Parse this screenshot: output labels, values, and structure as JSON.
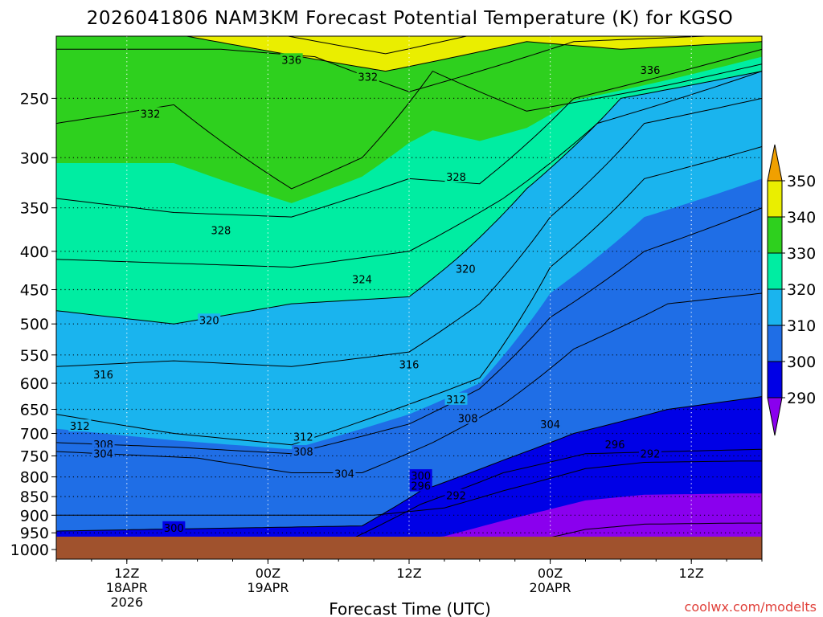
{
  "chart_data": {
    "type": "heatmap",
    "title": "2026041806 NAM3KM Forecast Potential Temperature (K) for KGSO",
    "xlabel": "Forecast Time (UTC)",
    "ylabel": "",
    "credit": "coolwx.com/modelts",
    "y_axis": {
      "scale": "log-pressure",
      "range_hPa": [
        1000,
        200
      ],
      "ticks": [
        250,
        300,
        350,
        400,
        450,
        500,
        550,
        600,
        650,
        700,
        750,
        800,
        850,
        900,
        950,
        1000
      ]
    },
    "x_axis": {
      "range_hours": [
        0,
        60
      ],
      "ticks": [
        {
          "hour": 6,
          "lines": [
            "12Z",
            "18APR",
            "2026"
          ]
        },
        {
          "hour": 18,
          "lines": [
            "00Z",
            "19APR"
          ]
        },
        {
          "hour": 30,
          "lines": [
            "12Z"
          ]
        },
        {
          "hour": 42,
          "lines": [
            "00Z",
            "20APR"
          ]
        },
        {
          "hour": 54,
          "lines": [
            "12Z"
          ]
        }
      ]
    },
    "grid": true,
    "colorbar": {
      "labels": [
        "290",
        "300",
        "310",
        "320",
        "330",
        "340",
        "350"
      ],
      "bins": [
        {
          "lo": 280,
          "hi": 290,
          "color": "#8a00ee"
        },
        {
          "lo": 290,
          "hi": 300,
          "color": "#0000e6"
        },
        {
          "lo": 300,
          "hi": 310,
          "color": "#1f6ee6"
        },
        {
          "lo": 310,
          "hi": 320,
          "color": "#1ab4ee"
        },
        {
          "lo": 320,
          "hi": 330,
          "color": "#00eda2"
        },
        {
          "lo": 330,
          "hi": 340,
          "color": "#2ed01e"
        },
        {
          "lo": 340,
          "hi": 350,
          "color": "#eaee00"
        },
        {
          "lo": 350,
          "hi": 360,
          "color": "#f0a000"
        }
      ]
    },
    "contour_interval_K": 4,
    "ground_color": "#a0522d",
    "isotherm_samples": [
      {
        "theta": 292,
        "points": [
          [
            27,
            900
          ],
          [
            33,
            880
          ],
          [
            38,
            835
          ],
          [
            45,
            780
          ],
          [
            50,
            765
          ],
          [
            58,
            762
          ]
        ]
      },
      {
        "theta": 296,
        "points": [
          [
            25,
            970
          ],
          [
            31,
            870
          ],
          [
            38,
            790
          ],
          [
            45,
            745
          ],
          [
            52,
            740
          ],
          [
            60,
            735
          ]
        ]
      },
      {
        "theta": 300,
        "points": [
          [
            0,
            945
          ],
          [
            8,
            940
          ],
          [
            26,
            930
          ],
          [
            31,
            835
          ],
          [
            38,
            760
          ],
          [
            44,
            700
          ],
          [
            52,
            650
          ],
          [
            60,
            625
          ]
        ]
      },
      {
        "theta": 304,
        "points": [
          [
            0,
            740
          ],
          [
            12,
            755
          ],
          [
            20,
            790
          ],
          [
            26,
            790
          ],
          [
            32,
            720
          ],
          [
            38,
            640
          ],
          [
            44,
            540
          ],
          [
            52,
            470
          ],
          [
            60,
            455
          ]
        ]
      },
      {
        "theta": 308,
        "points": [
          [
            0,
            720
          ],
          [
            10,
            730
          ],
          [
            20,
            745
          ],
          [
            30,
            680
          ],
          [
            36,
            610
          ],
          [
            42,
            490
          ],
          [
            50,
            400
          ],
          [
            60,
            350
          ]
        ]
      },
      {
        "theta": 312,
        "points": [
          [
            0,
            660
          ],
          [
            10,
            700
          ],
          [
            20,
            725
          ],
          [
            30,
            640
          ],
          [
            36,
            590
          ],
          [
            42,
            420
          ],
          [
            50,
            320
          ],
          [
            60,
            290
          ]
        ]
      },
      {
        "theta": 316,
        "points": [
          [
            0,
            570
          ],
          [
            10,
            560
          ],
          [
            20,
            570
          ],
          [
            30,
            545
          ],
          [
            36,
            470
          ],
          [
            42,
            360
          ],
          [
            50,
            270
          ],
          [
            60,
            250
          ]
        ]
      },
      {
        "theta": 320,
        "points": [
          [
            0,
            480
          ],
          [
            10,
            500
          ],
          [
            20,
            470
          ],
          [
            30,
            460
          ],
          [
            34,
            410
          ],
          [
            40,
            330
          ],
          [
            48,
            250
          ],
          [
            60,
            230
          ]
        ]
      },
      {
        "theta": 324,
        "points": [
          [
            0,
            410
          ],
          [
            10,
            415
          ],
          [
            20,
            420
          ],
          [
            30,
            400
          ],
          [
            38,
            340
          ],
          [
            46,
            270
          ],
          [
            60,
            230
          ]
        ]
      },
      {
        "theta": 328,
        "points": [
          [
            0,
            340
          ],
          [
            10,
            355
          ],
          [
            20,
            360
          ],
          [
            30,
            320
          ],
          [
            36,
            325
          ],
          [
            44,
            250
          ],
          [
            60,
            215
          ]
        ]
      },
      {
        "theta": 332,
        "points": [
          [
            0,
            270
          ],
          [
            10,
            255
          ],
          [
            20,
            330
          ],
          [
            26,
            300
          ],
          [
            32,
            230
          ],
          [
            40,
            260
          ],
          [
            52,
            240
          ],
          [
            60,
            225
          ]
        ]
      },
      {
        "theta": 336,
        "points": [
          [
            0,
            215
          ],
          [
            14,
            215
          ],
          [
            22,
            220
          ],
          [
            30,
            245
          ],
          [
            36,
            230
          ],
          [
            44,
            210
          ],
          [
            60,
            205
          ]
        ]
      },
      {
        "theta": 340,
        "points": [
          [
            10,
            205
          ],
          [
            28,
            230
          ],
          [
            40,
            210
          ],
          [
            48,
            215
          ],
          [
            60,
            210
          ]
        ]
      }
    ],
    "contour_labels": [
      {
        "text": "336",
        "hour": 20.0,
        "p": 222
      },
      {
        "text": "332",
        "hour": 26.5,
        "p": 234
      },
      {
        "text": "332",
        "hour": 8.0,
        "p": 262
      },
      {
        "text": "336",
        "hour": 50.5,
        "p": 229
      },
      {
        "text": "328",
        "hour": 34.0,
        "p": 318
      },
      {
        "text": "328",
        "hour": 14.0,
        "p": 375
      },
      {
        "text": "320",
        "hour": 34.8,
        "p": 422
      },
      {
        "text": "324",
        "hour": 26.0,
        "p": 436
      },
      {
        "text": "320",
        "hour": 13.0,
        "p": 494
      },
      {
        "text": "316",
        "hour": 30.0,
        "p": 566
      },
      {
        "text": "316",
        "hour": 4.0,
        "p": 584
      },
      {
        "text": "312",
        "hour": 34.0,
        "p": 630
      },
      {
        "text": "308",
        "hour": 35.0,
        "p": 668
      },
      {
        "text": "304",
        "hour": 42.0,
        "p": 680
      },
      {
        "text": "312",
        "hour": 2.0,
        "p": 684
      },
      {
        "text": "312",
        "hour": 21.0,
        "p": 707
      },
      {
        "text": "308",
        "hour": 4.0,
        "p": 724
      },
      {
        "text": "296",
        "hour": 47.5,
        "p": 724
      },
      {
        "text": "304",
        "hour": 4.0,
        "p": 745
      },
      {
        "text": "308",
        "hour": 21.0,
        "p": 740
      },
      {
        "text": "292",
        "hour": 50.5,
        "p": 745
      },
      {
        "text": "304",
        "hour": 24.5,
        "p": 792
      },
      {
        "text": "300",
        "hour": 31.0,
        "p": 797
      },
      {
        "text": "296",
        "hour": 31.0,
        "p": 822
      },
      {
        "text": "292",
        "hour": 34.0,
        "p": 847
      },
      {
        "text": "300",
        "hour": 10.0,
        "p": 935
      }
    ]
  }
}
